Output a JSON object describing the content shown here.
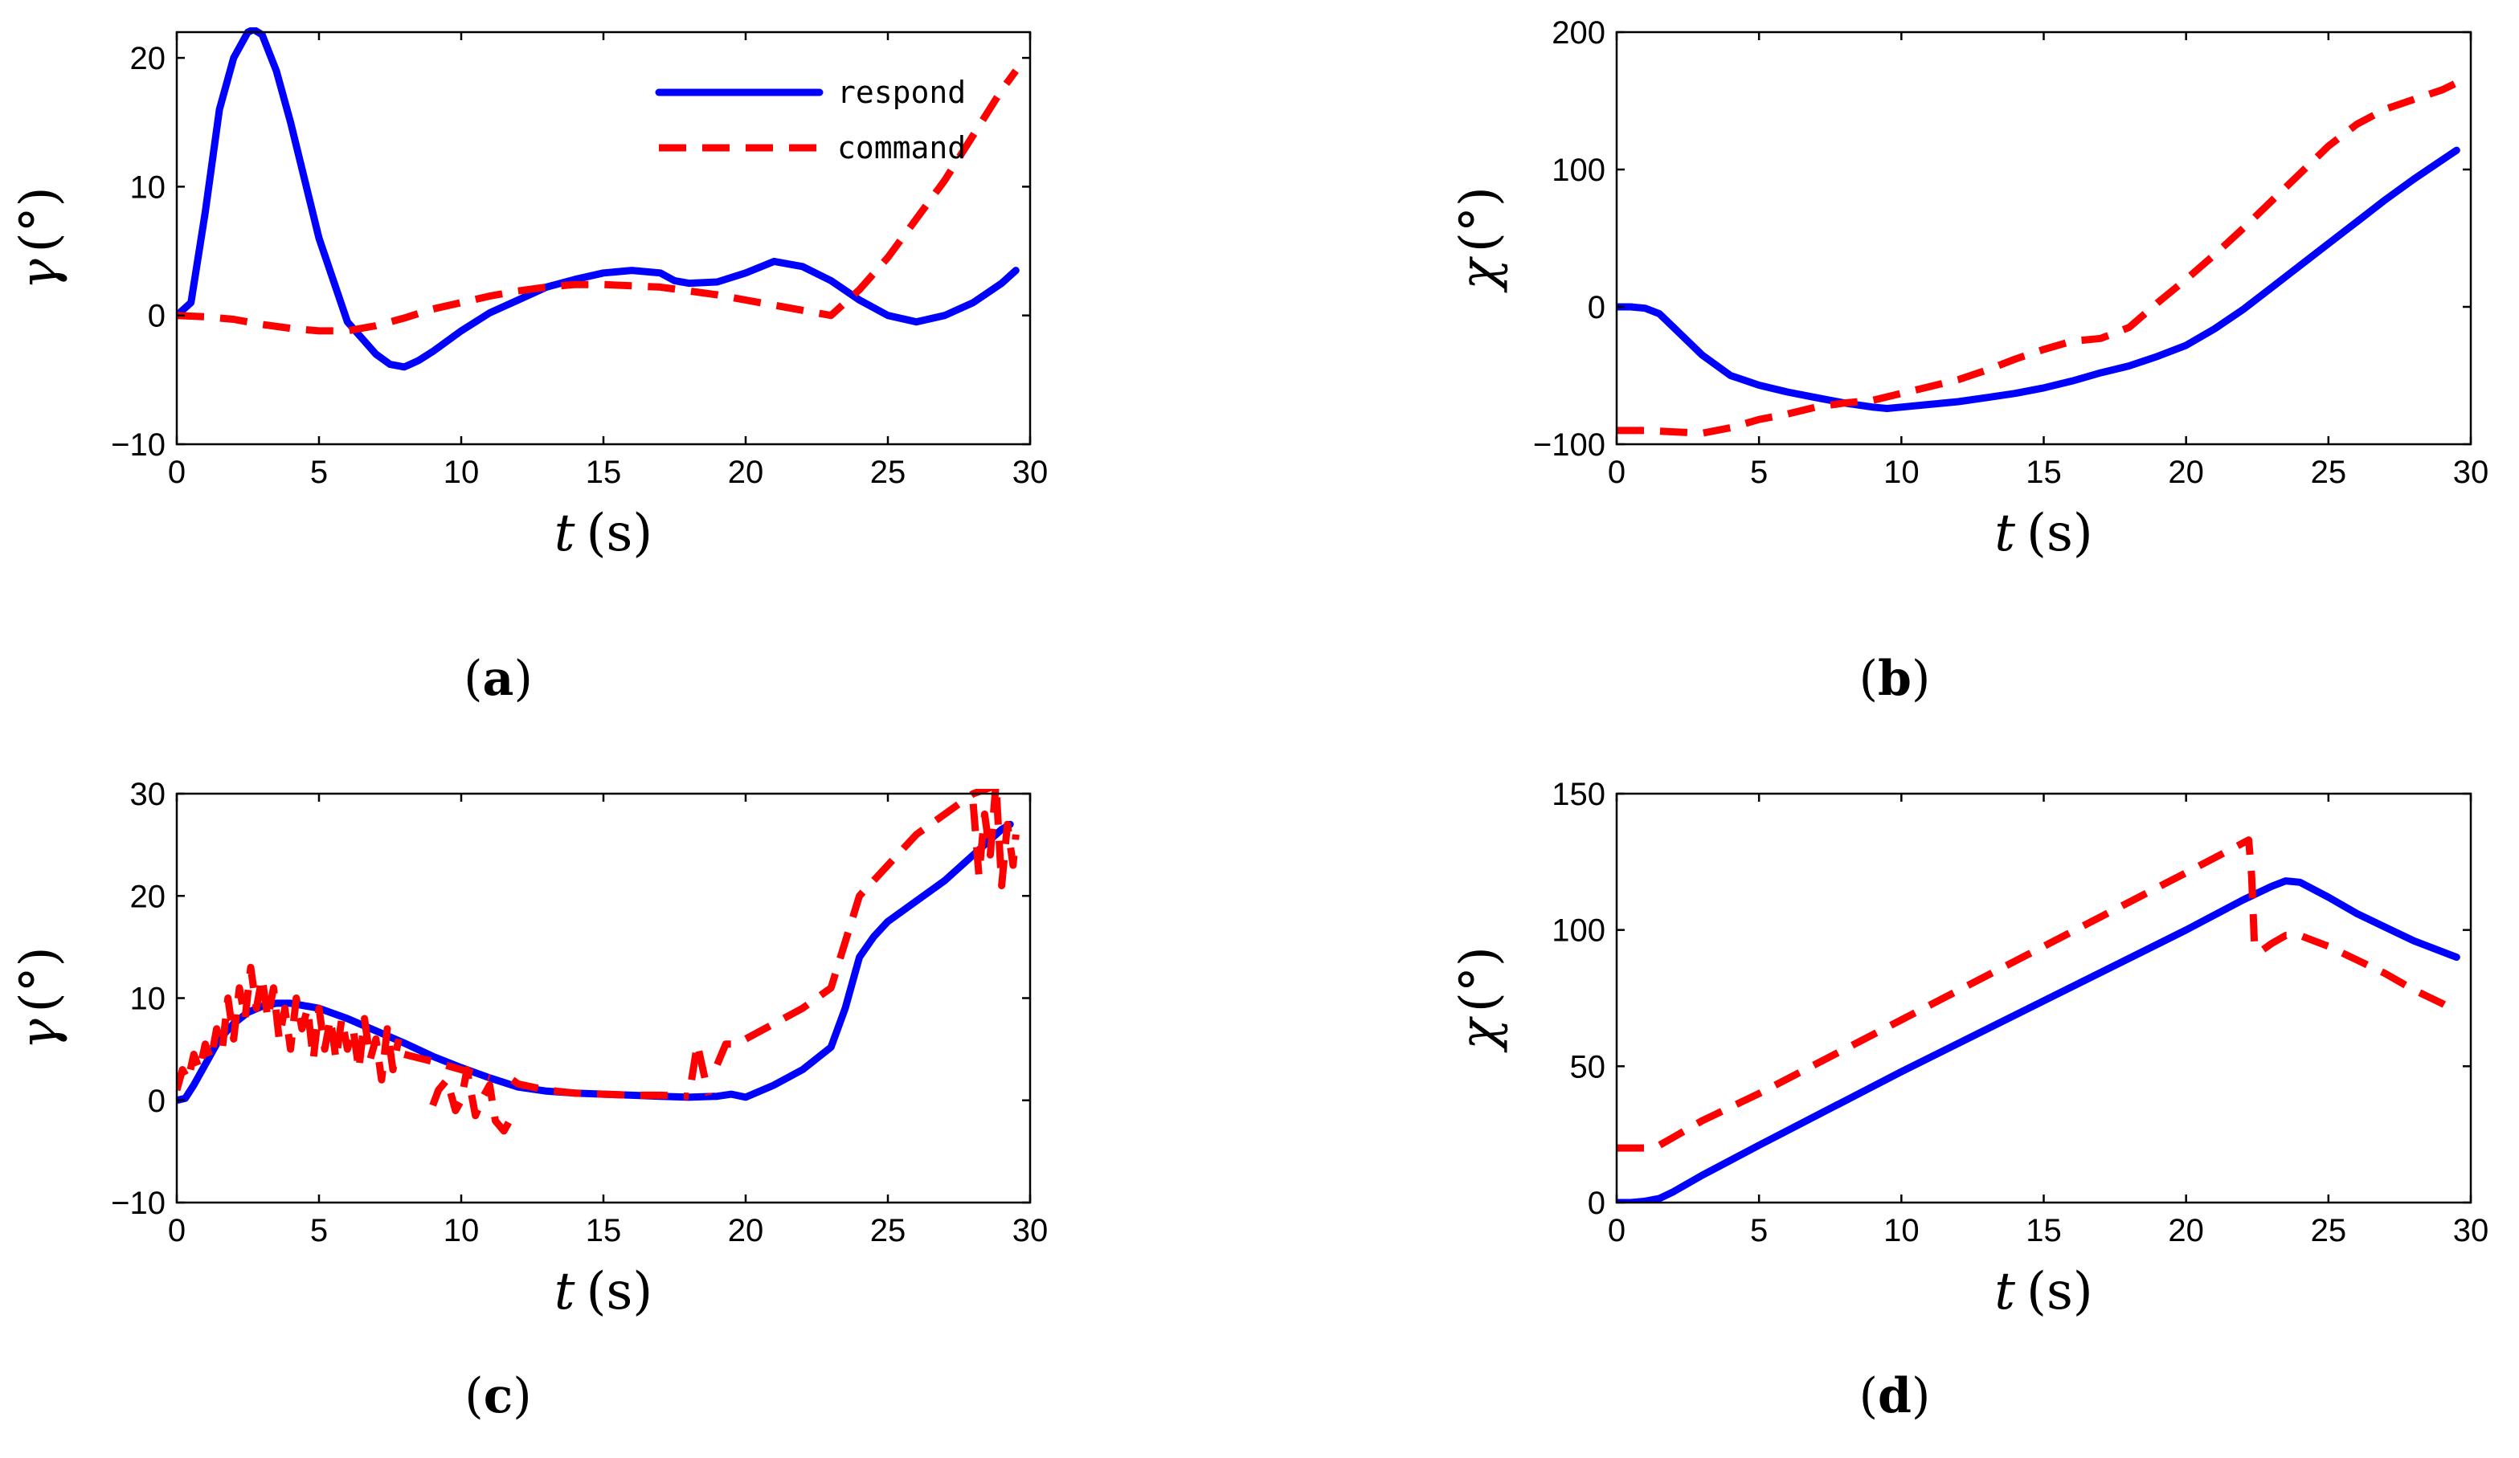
{
  "legend": {
    "respond": "respond",
    "command": "command"
  },
  "chart_data": [
    {
      "id": "a",
      "type": "line",
      "caption_letter": "a",
      "xlabel": {
        "var": "t",
        "unit": "(s)"
      },
      "ylabel": {
        "var": "γ",
        "unit": "(°)"
      },
      "xlim": [
        0,
        30
      ],
      "ylim": [
        -10,
        22
      ],
      "xticks": [
        0,
        5,
        10,
        15,
        20,
        25,
        30
      ],
      "yticks": [
        -10,
        0,
        10,
        20
      ],
      "xtick_labels": [
        "0",
        "5",
        "10",
        "15",
        "20",
        "25",
        "30"
      ],
      "ytick_labels": [
        "−10",
        "0",
        "10",
        "20"
      ],
      "legend_position": "top-right",
      "series": [
        {
          "name": "respond",
          "style": "solid",
          "color": "#0000ff",
          "x": [
            0,
            0.5,
            1,
            1.5,
            2,
            2.5,
            2.7,
            3,
            3.5,
            4,
            5,
            6,
            7,
            7.5,
            8,
            8.5,
            9,
            10,
            11,
            12,
            13,
            14,
            15,
            16,
            17,
            17.5,
            18,
            19,
            20,
            21,
            22,
            23,
            24,
            25,
            26,
            27,
            28,
            29,
            29.5
          ],
          "y": [
            0,
            1,
            8,
            16,
            20,
            22,
            22.2,
            21.8,
            19,
            15,
            6,
            -0.5,
            -3,
            -3.8,
            -4,
            -3.5,
            -2.8,
            -1.2,
            0.2,
            1.2,
            2.2,
            2.8,
            3.3,
            3.5,
            3.3,
            2.7,
            2.5,
            2.6,
            3.3,
            4.2,
            3.8,
            2.7,
            1.2,
            0,
            -0.5,
            0,
            1,
            2.5,
            3.5
          ]
        },
        {
          "name": "command",
          "style": "dashed",
          "color": "#ff0000",
          "x": [
            0,
            1,
            2,
            3,
            4,
            5,
            6,
            7,
            8,
            9,
            10,
            11,
            12,
            13,
            14,
            15,
            16,
            17,
            18,
            19,
            20,
            21,
            22,
            23,
            24,
            25,
            26,
            27,
            28,
            29,
            29.5
          ],
          "y": [
            0,
            -0.1,
            -0.3,
            -0.7,
            -1,
            -1.2,
            -1.2,
            -0.8,
            -0.2,
            0.5,
            1,
            1.5,
            1.9,
            2.2,
            2.4,
            2.4,
            2.3,
            2.2,
            1.9,
            1.6,
            1.2,
            0.8,
            0.4,
            0,
            2,
            4.5,
            7.5,
            10.5,
            14,
            17.5,
            19
          ]
        }
      ]
    },
    {
      "id": "b",
      "type": "line",
      "caption_letter": "b",
      "xlabel": {
        "var": "t",
        "unit": "(s)"
      },
      "ylabel": {
        "var": "χ",
        "unit": "(°)"
      },
      "xlim": [
        0,
        30
      ],
      "ylim": [
        -100,
        200
      ],
      "xticks": [
        0,
        5,
        10,
        15,
        20,
        25,
        30
      ],
      "yticks": [
        -100,
        0,
        100,
        200
      ],
      "xtick_labels": [
        "0",
        "5",
        "10",
        "15",
        "20",
        "25",
        "30"
      ],
      "ytick_labels": [
        "−100",
        "0",
        "100",
        "200"
      ],
      "series": [
        {
          "name": "respond",
          "style": "solid",
          "color": "#0000ff",
          "x": [
            0,
            0.5,
            1,
            1.5,
            2,
            3,
            4,
            5,
            6,
            7,
            8,
            9,
            9.5,
            10,
            11,
            12,
            13,
            14,
            15,
            16,
            17,
            18,
            19,
            20,
            21,
            22,
            23,
            24,
            25,
            26,
            27,
            28,
            29,
            29.5
          ],
          "y": [
            0,
            0,
            -1,
            -5,
            -15,
            -35,
            -50,
            -57,
            -62,
            -66,
            -70,
            -73,
            -74,
            -73,
            -71,
            -69,
            -66,
            -63,
            -59,
            -54,
            -48,
            -43,
            -36,
            -28,
            -16,
            -2,
            14,
            30,
            46,
            62,
            78,
            93,
            107,
            114
          ]
        },
        {
          "name": "command",
          "style": "dashed",
          "color": "#ff0000",
          "x": [
            0,
            1,
            2,
            3,
            4,
            5,
            6,
            7,
            8,
            9,
            10,
            11,
            12,
            13,
            14,
            15,
            16,
            17,
            18,
            19,
            20,
            21,
            22,
            23,
            24,
            25,
            26,
            27,
            28,
            29,
            29.5
          ],
          "y": [
            -90,
            -90,
            -91,
            -92,
            -88,
            -82,
            -78,
            -73,
            -70,
            -68,
            -63,
            -58,
            -53,
            -46,
            -38,
            -31,
            -25,
            -23,
            -15,
            3,
            20,
            38,
            57,
            77,
            97,
            117,
            133,
            144,
            151,
            158,
            163
          ]
        }
      ]
    },
    {
      "id": "c",
      "type": "line",
      "caption_letter": "c",
      "xlabel": {
        "var": "t",
        "unit": "(s)"
      },
      "ylabel": {
        "var": "γ",
        "unit": "(°)"
      },
      "xlim": [
        0,
        30
      ],
      "ylim": [
        -10,
        30
      ],
      "xticks": [
        0,
        5,
        10,
        15,
        20,
        25,
        30
      ],
      "yticks": [
        -10,
        0,
        10,
        20,
        30
      ],
      "xtick_labels": [
        "0",
        "5",
        "10",
        "15",
        "20",
        "25",
        "30"
      ],
      "ytick_labels": [
        "−10",
        "0",
        "10",
        "20",
        "30"
      ],
      "series": [
        {
          "name": "respond",
          "style": "solid",
          "color": "#0000ff",
          "x": [
            0,
            0.3,
            0.6,
            1,
            1.5,
            2,
            2.5,
            3,
            3.5,
            4,
            5,
            6,
            7,
            8,
            9,
            10,
            11,
            12,
            13,
            14,
            15,
            16,
            17,
            18,
            19,
            19.5,
            20,
            21,
            22,
            23,
            23.5,
            24,
            24.5,
            25,
            26,
            27,
            28,
            29,
            29.3
          ],
          "y": [
            0,
            0.2,
            1.5,
            3.5,
            6,
            7.5,
            8.6,
            9.2,
            9.5,
            9.5,
            9,
            8,
            6.8,
            5.6,
            4.3,
            3.2,
            2.2,
            1.3,
            0.9,
            0.7,
            0.6,
            0.5,
            0.4,
            0.3,
            0.4,
            0.6,
            0.3,
            1.5,
            3,
            5.2,
            9,
            14,
            16,
            17.5,
            19.5,
            21.5,
            24,
            26.5,
            27
          ]
        },
        {
          "name": "command",
          "style": "dashed",
          "color": "#ff0000",
          "segmented": true,
          "segments": [
            {
              "x": [
                0,
                0.2,
                0.4,
                0.6,
                0.8,
                1,
                1.2,
                1.4,
                1.6,
                1.8,
                2,
                2.2,
                2.4,
                2.6,
                2.8,
                3,
                3.2,
                3.4,
                3.6,
                3.8,
                4,
                4.2,
                4.4,
                4.6,
                4.8,
                5,
                5.2,
                5.4,
                5.6,
                5.8,
                6,
                6.2,
                6.4,
                6.6,
                6.8,
                7,
                7.2,
                7.4,
                7.6,
                7.8
              ],
              "y": [
                1,
                3,
                2,
                4.5,
                3,
                5.5,
                4,
                7,
                5,
                10,
                6,
                11,
                8,
                13,
                9,
                12,
                8,
                11,
                6,
                9,
                5,
                10,
                7,
                9,
                4,
                9,
                5,
                8,
                4,
                8,
                5,
                7,
                3,
                8,
                4,
                6,
                2,
                7,
                3,
                6
              ]
            },
            {
              "x": [
                8,
                9,
                10,
                11
              ],
              "y": [
                4.5,
                3.8,
                3,
                2.2
              ]
            },
            {
              "x": [
                9,
                9.2,
                9.5,
                9.8,
                10,
                10.2,
                10.5,
                10.8,
                11,
                11.2,
                11.5,
                11.7
              ],
              "y": [
                -0.5,
                1,
                2,
                -1,
                0,
                3,
                -1.5,
                0.5,
                1.5,
                -2,
                -3,
                -2
              ]
            },
            {
              "x": [
                11.8,
                12,
                13,
                14,
                15,
                16,
                17,
                18
              ],
              "y": [
                2,
                1.6,
                1.0,
                0.7,
                0.6,
                0.5,
                0.5,
                0.4
              ]
            },
            {
              "x": [
                18.1,
                18.3,
                18.5,
                18.7
              ],
              "y": [
                2,
                5.5,
                3,
                0.5
              ]
            },
            {
              "x": [
                19,
                19.3,
                19.6,
                20,
                21,
                22,
                23,
                24,
                25,
                26,
                27,
                28,
                29,
                29.3
              ],
              "y": [
                3.5,
                5.5,
                5.5,
                6,
                7.5,
                9,
                11,
                20,
                23,
                26,
                28,
                30,
                31,
                30.5
              ]
            },
            {
              "x": [
                28,
                28.2,
                28.4,
                28.6,
                28.8,
                29,
                29.2,
                29.4,
                29.5
              ],
              "y": [
                29,
                22,
                28,
                24,
                31,
                21,
                27,
                23,
                26
              ]
            }
          ]
        }
      ]
    },
    {
      "id": "d",
      "type": "line",
      "caption_letter": "d",
      "xlabel": {
        "var": "t",
        "unit": "(s)"
      },
      "ylabel": {
        "var": "χ",
        "unit": "(°)"
      },
      "xlim": [
        0,
        30
      ],
      "ylim": [
        0,
        150
      ],
      "xticks": [
        0,
        5,
        10,
        15,
        20,
        25,
        30
      ],
      "yticks": [
        0,
        50,
        100,
        150
      ],
      "xtick_labels": [
        "0",
        "5",
        "10",
        "15",
        "20",
        "25",
        "30"
      ],
      "ytick_labels": [
        "0",
        "50",
        "100",
        "150"
      ],
      "series": [
        {
          "name": "respond",
          "style": "solid",
          "color": "#0000ff",
          "x": [
            0,
            0.5,
            1,
            1.5,
            2,
            3,
            5,
            10,
            15,
            20,
            22,
            23,
            23.5,
            24,
            25,
            26,
            27,
            28,
            29,
            29.5
          ],
          "y": [
            0,
            0,
            0.5,
            1.5,
            4,
            10,
            21,
            48,
            74,
            100,
            111,
            116,
            118,
            117.5,
            112,
            106,
            101,
            96,
            92,
            90
          ]
        },
        {
          "name": "command",
          "style": "dashed",
          "color": "#ff0000",
          "x": [
            0,
            0.5,
            1,
            1.5,
            2,
            3,
            5,
            10,
            15,
            20,
            22.2,
            22.3,
            22.4,
            22.6,
            23,
            23.5,
            24,
            25,
            26,
            27,
            28,
            29,
            29.5
          ],
          "y": [
            20,
            20,
            20,
            21,
            24,
            30,
            40,
            67,
            94,
            121,
            133,
            120,
            95,
            92,
            95,
            98,
            98,
            94,
            89,
            84,
            78,
            73,
            70
          ]
        }
      ]
    }
  ]
}
